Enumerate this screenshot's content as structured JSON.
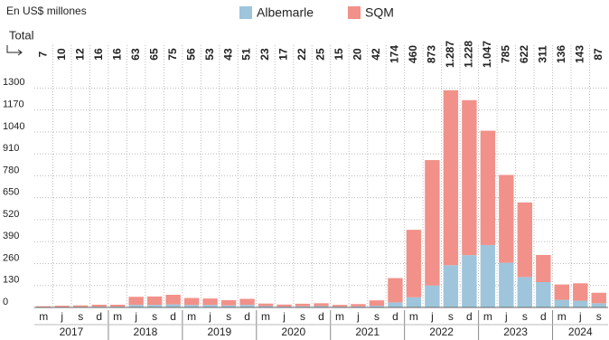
{
  "chart_data": {
    "type": "stacked_bar",
    "subtitle": "En US$ millones",
    "categories": [
      "m",
      "j",
      "s",
      "d",
      "m",
      "j",
      "s",
      "d",
      "m",
      "j",
      "s",
      "d",
      "m",
      "j",
      "s",
      "d",
      "m",
      "j",
      "s",
      "d",
      "m",
      "j",
      "s",
      "d",
      "m",
      "j",
      "s",
      "d",
      "m",
      "j",
      "s"
    ],
    "years": [
      "2017",
      "2018",
      "2019",
      "2020",
      "2021",
      "2022",
      "2023",
      "2024"
    ],
    "series": [
      {
        "name": "Albemarle",
        "color": "#9ec5dc",
        "values": [
          2,
          3,
          4,
          5,
          5,
          15,
          15,
          18,
          15,
          15,
          12,
          15,
          8,
          5,
          7,
          8,
          5,
          6,
          10,
          30,
          60,
          130,
          250,
          310,
          370,
          265,
          180,
          150,
          45,
          40,
          25
        ]
      },
      {
        "name": "SQM",
        "color": "#f29189",
        "values": [
          5,
          7,
          8,
          11,
          11,
          48,
          50,
          57,
          41,
          38,
          31,
          36,
          15,
          12,
          15,
          17,
          10,
          14,
          32,
          144,
          400,
          743,
          1037,
          918,
          677,
          520,
          442,
          161,
          91,
          103,
          62
        ]
      }
    ],
    "totals": {
      "label": "Total",
      "values": [
        7,
        10,
        12,
        16,
        16,
        63,
        65,
        75,
        56,
        53,
        43,
        51,
        23,
        17,
        22,
        25,
        15,
        20,
        42,
        174,
        460,
        873,
        1287,
        1228,
        1047,
        785,
        622,
        311,
        136,
        143,
        87
      ],
      "value_labels": [
        "7",
        "10",
        "12",
        "16",
        "16",
        "63",
        "65",
        "75",
        "56",
        "53",
        "43",
        "51",
        "23",
        "17",
        "22",
        "25",
        "15",
        "20",
        "42",
        "174",
        "460",
        "873",
        "1.287",
        "1.228",
        "1.047",
        "785",
        "622",
        "311",
        "136",
        "143",
        "87"
      ]
    },
    "ylim": [
      0,
      1350
    ],
    "yticks": [
      0,
      130,
      260,
      390,
      520,
      650,
      780,
      910,
      1040,
      1170,
      1300
    ],
    "grid": true
  }
}
